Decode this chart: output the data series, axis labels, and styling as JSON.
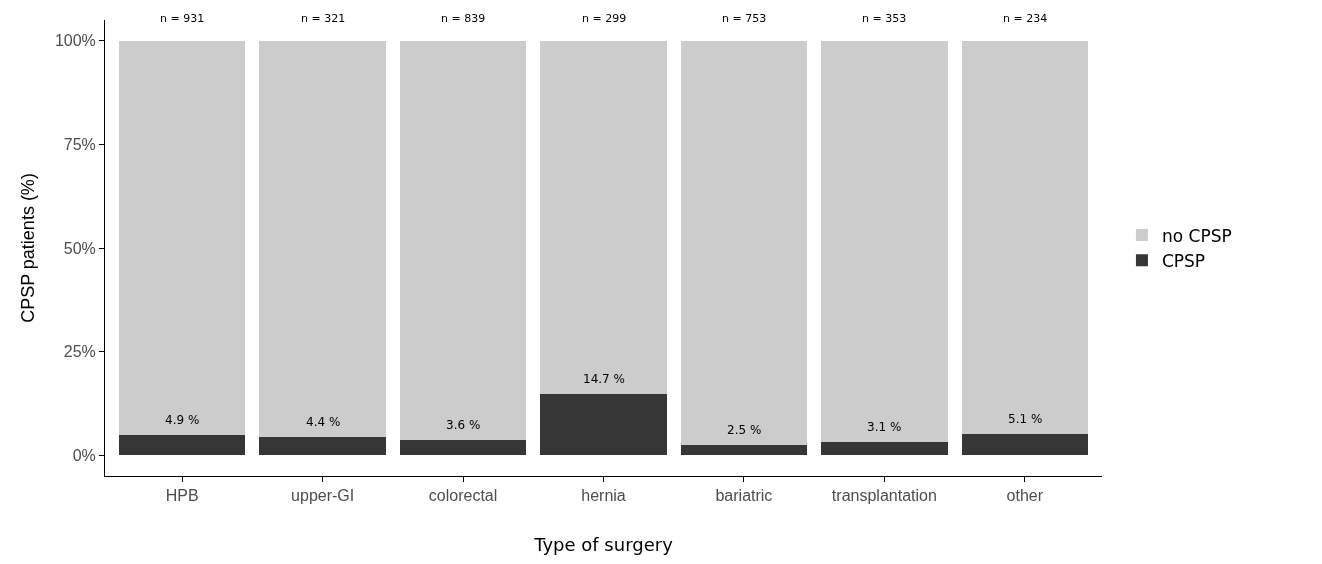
{
  "chart_data": {
    "type": "bar",
    "stacked": true,
    "xlabel": "Type of surgery",
    "ylabel": "CPSP patients (%)",
    "categories": [
      "HPB",
      "upper-GI",
      "colorectal",
      "hernia",
      "bariatric",
      "transplantation",
      "other"
    ],
    "series": [
      {
        "name": "CPSP",
        "color": "#363636",
        "values": [
          4.9,
          4.4,
          3.6,
          14.7,
          2.5,
          3.1,
          5.1
        ],
        "value_labels": [
          "4.9 %",
          "4.4 %",
          "3.6 %",
          "14.7 %",
          "2.5 %",
          "3.1 %",
          "5.1 %"
        ]
      },
      {
        "name": "no CPSP",
        "color": "#cccccc",
        "values": [
          95.1,
          95.6,
          96.4,
          85.3,
          97.5,
          96.9,
          94.9
        ]
      }
    ],
    "annotations": [
      {
        "text": "n = 931",
        "x": "HPB",
        "y": 100
      },
      {
        "text": "n = 321",
        "x": "upper-GI",
        "y": 100
      },
      {
        "text": "n = 839",
        "x": "colorectal",
        "y": 100
      },
      {
        "text": "n = 299",
        "x": "hernia",
        "y": 100
      },
      {
        "text": "n = 753",
        "x": "bariatric",
        "y": 100
      },
      {
        "text": "n = 353",
        "x": "transplantation",
        "y": 100
      },
      {
        "text": "n = 234",
        "x": "other",
        "y": 100
      }
    ],
    "ylim": [
      -5,
      105
    ],
    "yticks": [
      {
        "value": 0,
        "label": "0%"
      },
      {
        "value": 25,
        "label": "25%"
      },
      {
        "value": 50,
        "label": "50%"
      },
      {
        "value": 75,
        "label": "75%"
      },
      {
        "value": 100,
        "label": "100%"
      }
    ],
    "legend": "right"
  }
}
